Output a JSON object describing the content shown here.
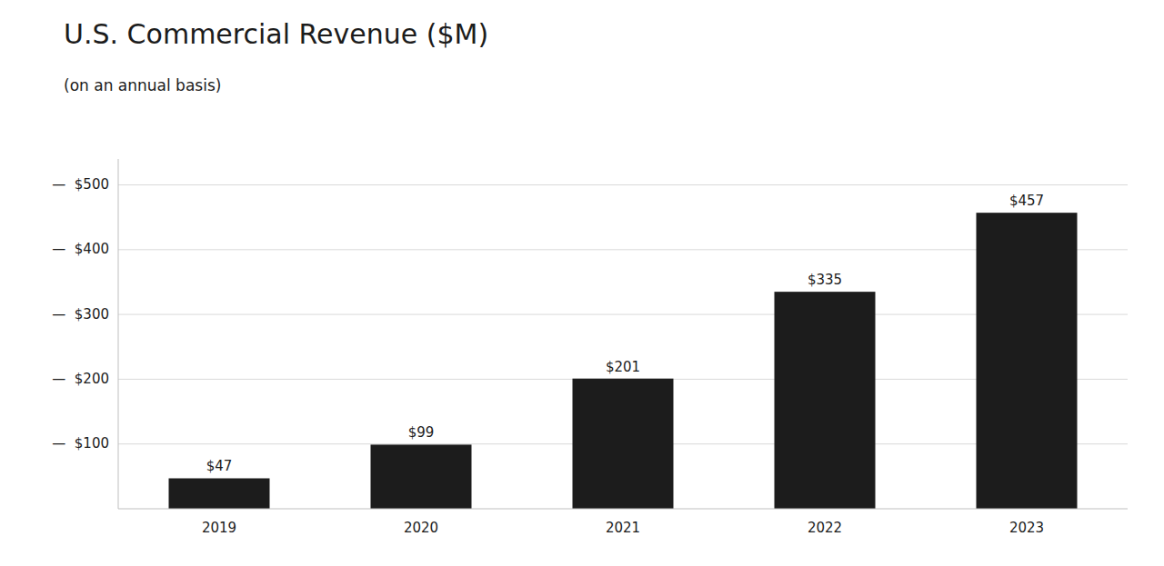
{
  "chart_data": {
    "type": "bar",
    "title": "U.S. Commercial Revenue ($M)",
    "subtitle": "(on an annual basis)",
    "categories": [
      "2019",
      "2020",
      "2021",
      "2022",
      "2023"
    ],
    "values": [
      47,
      99,
      201,
      335,
      457
    ],
    "value_labels": [
      "$47",
      "$99",
      "$201",
      "$335",
      "$457"
    ],
    "data_labels": true,
    "color": "#1c1c1c",
    "ylim": [
      0,
      540
    ],
    "yticks": [
      {
        "value": 100,
        "label": "—  $100"
      },
      {
        "value": 200,
        "label": "—  $200"
      },
      {
        "value": 300,
        "label": "—  $300"
      },
      {
        "value": 400,
        "label": "—  $400"
      },
      {
        "value": 500,
        "label": "—  $500"
      }
    ],
    "grid": true
  }
}
